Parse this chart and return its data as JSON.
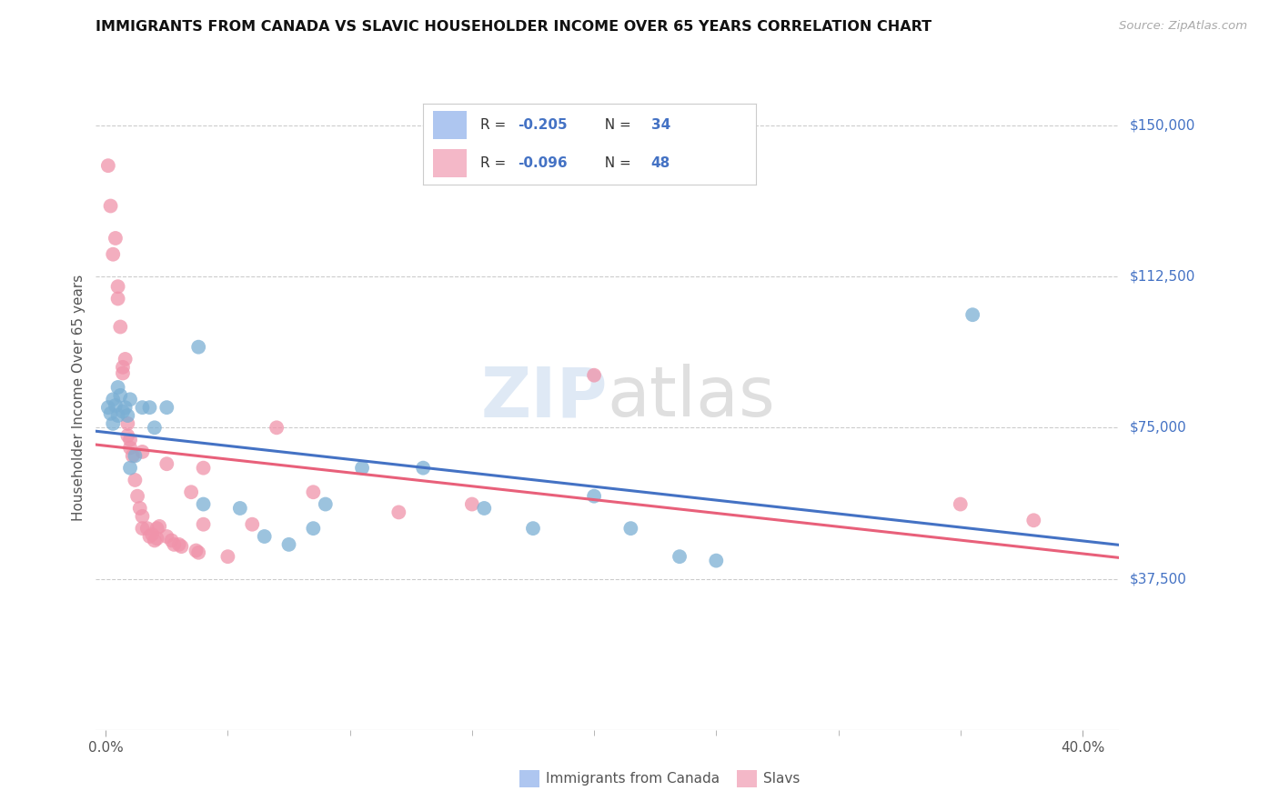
{
  "title": "IMMIGRANTS FROM CANADA VS SLAVIC HOUSEHOLDER INCOME OVER 65 YEARS CORRELATION CHART",
  "source": "Source: ZipAtlas.com",
  "ylabel": "Householder Income Over 65 years",
  "ytick_labels": [
    "$37,500",
    "$75,000",
    "$112,500",
    "$150,000"
  ],
  "ytick_vals": [
    37500,
    75000,
    112500,
    150000
  ],
  "ylim": [
    0,
    165000
  ],
  "xlim": [
    -0.004,
    0.415
  ],
  "canada_color": "#7bafd4",
  "slavs_color": "#f093aa",
  "canada_line_color": "#4472c4",
  "slavs_line_color": "#e8607a",
  "canada_legend_color": "#aec6f0",
  "slavs_legend_color": "#f4b8c8",
  "watermark": "ZIPatlas",
  "canada_R": -0.205,
  "canada_N": 34,
  "slavs_R": -0.096,
  "slavs_N": 48,
  "xtick_major": [
    0.0,
    0.4
  ],
  "xtick_major_labels": [
    "0.0%",
    "40.0%"
  ],
  "xtick_minor": [
    0.05,
    0.1,
    0.15,
    0.2,
    0.25,
    0.3,
    0.35
  ],
  "canada_points": [
    [
      0.001,
      80000
    ],
    [
      0.002,
      78500
    ],
    [
      0.003,
      82000
    ],
    [
      0.003,
      76000
    ],
    [
      0.004,
      80500
    ],
    [
      0.005,
      85000
    ],
    [
      0.005,
      78000
    ],
    [
      0.006,
      83000
    ],
    [
      0.007,
      79000
    ],
    [
      0.008,
      80000
    ],
    [
      0.009,
      78000
    ],
    [
      0.01,
      82000
    ],
    [
      0.01,
      65000
    ],
    [
      0.012,
      68000
    ],
    [
      0.015,
      80000
    ],
    [
      0.018,
      80000
    ],
    [
      0.02,
      75000
    ],
    [
      0.025,
      80000
    ],
    [
      0.038,
      95000
    ],
    [
      0.04,
      56000
    ],
    [
      0.055,
      55000
    ],
    [
      0.065,
      48000
    ],
    [
      0.075,
      46000
    ],
    [
      0.085,
      50000
    ],
    [
      0.09,
      56000
    ],
    [
      0.105,
      65000
    ],
    [
      0.13,
      65000
    ],
    [
      0.155,
      55000
    ],
    [
      0.175,
      50000
    ],
    [
      0.2,
      58000
    ],
    [
      0.215,
      50000
    ],
    [
      0.235,
      43000
    ],
    [
      0.25,
      42000
    ],
    [
      0.355,
      103000
    ]
  ],
  "slavs_points": [
    [
      0.001,
      140000
    ],
    [
      0.002,
      130000
    ],
    [
      0.003,
      118000
    ],
    [
      0.004,
      122000
    ],
    [
      0.005,
      110000
    ],
    [
      0.005,
      107000
    ],
    [
      0.006,
      100000
    ],
    [
      0.007,
      90000
    ],
    [
      0.007,
      88500
    ],
    [
      0.008,
      92000
    ],
    [
      0.009,
      76000
    ],
    [
      0.009,
      73000
    ],
    [
      0.01,
      72000
    ],
    [
      0.01,
      70000
    ],
    [
      0.011,
      68000
    ],
    [
      0.012,
      62000
    ],
    [
      0.013,
      58000
    ],
    [
      0.014,
      55000
    ],
    [
      0.015,
      53000
    ],
    [
      0.015,
      50000
    ],
    [
      0.015,
      69000
    ],
    [
      0.017,
      50000
    ],
    [
      0.018,
      48000
    ],
    [
      0.019,
      48500
    ],
    [
      0.02,
      47000
    ],
    [
      0.021,
      47500
    ],
    [
      0.021,
      50000
    ],
    [
      0.022,
      50500
    ],
    [
      0.025,
      66000
    ],
    [
      0.025,
      48000
    ],
    [
      0.027,
      47000
    ],
    [
      0.028,
      46000
    ],
    [
      0.03,
      46000
    ],
    [
      0.031,
      45500
    ],
    [
      0.035,
      59000
    ],
    [
      0.037,
      44500
    ],
    [
      0.038,
      44000
    ],
    [
      0.04,
      51000
    ],
    [
      0.05,
      43000
    ],
    [
      0.06,
      51000
    ],
    [
      0.07,
      75000
    ],
    [
      0.085,
      59000
    ],
    [
      0.12,
      54000
    ],
    [
      0.15,
      56000
    ],
    [
      0.2,
      88000
    ],
    [
      0.35,
      56000
    ],
    [
      0.38,
      52000
    ],
    [
      0.04,
      65000
    ]
  ]
}
